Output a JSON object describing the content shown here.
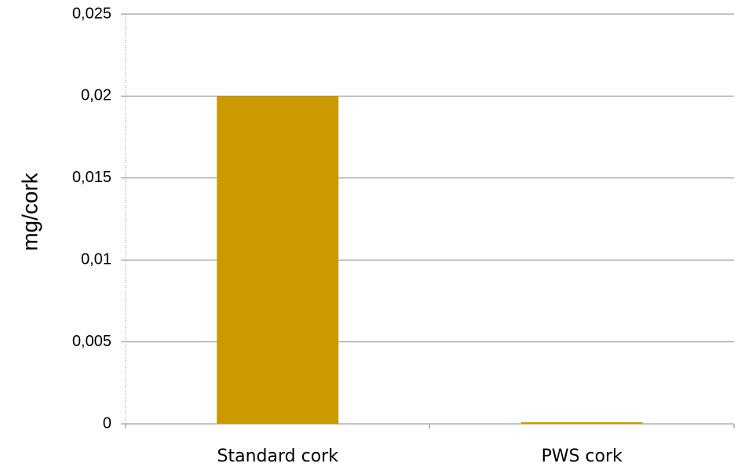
{
  "chart_data": {
    "type": "bar",
    "y_label": "mg/cork",
    "categories": [
      "Standard cork",
      "PWS cork"
    ],
    "values": [
      0.02,
      0.0001
    ],
    "color": "#cc9900",
    "ylim": [
      0,
      0.025
    ],
    "yticks": [
      0,
      {
        "value": 0.005,
        "label": "0,005"
      },
      {
        "value": 0.01,
        "label": "0,01"
      },
      {
        "value": 0.015,
        "label": "0,015"
      },
      {
        "value": 0.02,
        "label": "0,02"
      },
      {
        "value": 0.025,
        "label": "0,025"
      }
    ],
    "grid": true
  }
}
